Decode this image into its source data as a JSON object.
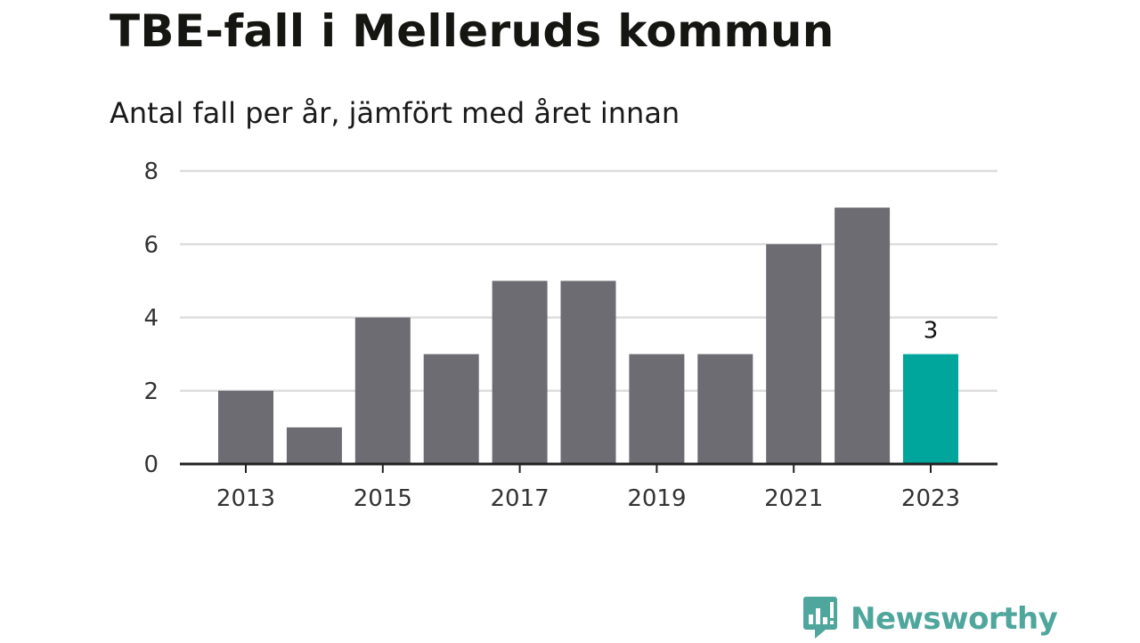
{
  "title": "TBE-fall i Melleruds kommun",
  "subtitle": "Antal fall per år, jämfört med året innan",
  "brand": {
    "name": "Newsworthy",
    "icon": "newsworthy-logo-icon"
  },
  "colors": {
    "bar": "#6d6c72",
    "highlight": "#00a59b",
    "grid": "#dddddd",
    "axis": "#222222",
    "brand": "#4fa69c"
  },
  "chart_data": {
    "type": "bar",
    "categories": [
      "2013",
      "2014",
      "2015",
      "2016",
      "2017",
      "2018",
      "2019",
      "2020",
      "2021",
      "2022",
      "2023"
    ],
    "values": [
      2,
      1,
      4,
      3,
      5,
      5,
      3,
      3,
      6,
      7,
      3
    ],
    "x_tick_labels": [
      "2013",
      "2015",
      "2017",
      "2019",
      "2021",
      "2023"
    ],
    "y_ticks": [
      0,
      2,
      4,
      6,
      8
    ],
    "ylim": [
      0,
      8
    ],
    "highlight_category": "2023",
    "data_labels": [
      {
        "category": "2023",
        "text": "3"
      }
    ],
    "grid": true,
    "title": "TBE-fall i Melleruds kommun",
    "subtitle": "Antal fall per år, jämfört med året innan",
    "xlabel": "",
    "ylabel": ""
  }
}
